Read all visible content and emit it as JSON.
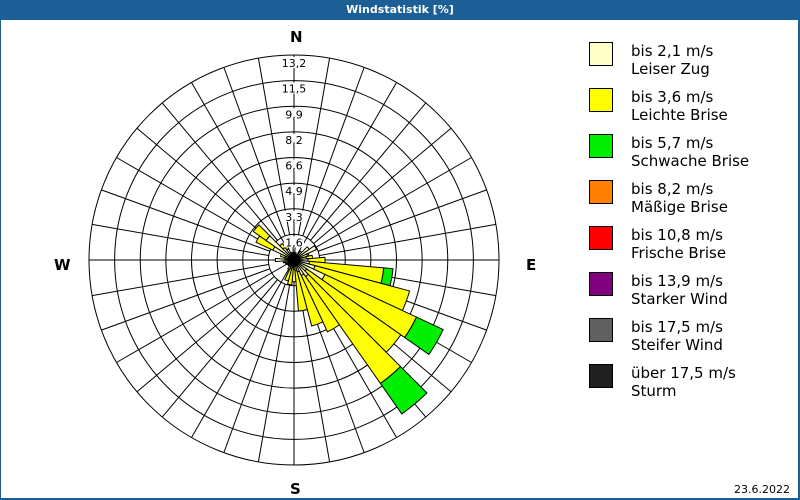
{
  "window": {
    "title": "Windstatistik [%]"
  },
  "footer": {
    "date": "23.6.2022"
  },
  "compass": {
    "n": "N",
    "e": "E",
    "s": "S",
    "w": "W"
  },
  "legend": [
    {
      "range": "bis 2,1 m/s",
      "label": "Leiser Zug",
      "color": "#ffffc8"
    },
    {
      "range": "bis 3,6 m/s",
      "label": "Leichte Brise",
      "color": "#ffff00"
    },
    {
      "range": "bis 5,7 m/s",
      "label": "Schwache Brise",
      "color": "#00ee00"
    },
    {
      "range": "bis 8,2 m/s",
      "label": "Mäßige Brise",
      "color": "#ff8000"
    },
    {
      "range": "bis 10,8 m/s",
      "label": "Frische Brise",
      "color": "#ff0000"
    },
    {
      "range": "bis 13,9 m/s",
      "label": "Starker Wind",
      "color": "#800080"
    },
    {
      "range": "bis 17,5 m/s",
      "label": "Steifer Wind",
      "color": "#606060"
    },
    {
      "range": "über 17,5 m/s",
      "label": "Sturm",
      "color": "#202020"
    }
  ],
  "chart_data": {
    "type": "wind-rose",
    "title": "Windstatistik [%]",
    "unit": "%",
    "ring_labels": [
      "1,6",
      "3,3",
      "4,9",
      "6,6",
      "8,2",
      "9,9",
      "11,5",
      "13,2"
    ],
    "rmax": 13.2,
    "sector_width_deg": 10,
    "directions_deg": [
      0,
      10,
      20,
      30,
      40,
      50,
      60,
      70,
      80,
      90,
      100,
      110,
      120,
      130,
      140,
      150,
      160,
      170,
      180,
      190,
      200,
      210,
      220,
      230,
      240,
      250,
      260,
      270,
      280,
      290,
      300,
      310,
      320,
      330,
      340,
      350
    ],
    "series": [
      {
        "name": "bis 2,1 m/s",
        "values": [
          1.0,
          0.4,
          0.3,
          0.4,
          0.7,
          1.2,
          1.6,
          0.9,
          0.8,
          0.9,
          1.0,
          1.4,
          2.2,
          1.0,
          1.3,
          1.1,
          0.8,
          0.7,
          0.6,
          0.5,
          0.6,
          0.5,
          0.4,
          0.4,
          0.4,
          0.5,
          0.6,
          1.2,
          0.5,
          0.6,
          1.5,
          2.2,
          1.0,
          0.8,
          0.4,
          0.4
        ]
      },
      {
        "name": "bis 3,6 m/s",
        "values": [
          0.1,
          0.1,
          0.0,
          0.0,
          0.0,
          0.0,
          0.0,
          0.1,
          0.4,
          1.1,
          4.8,
          6.3,
          6.5,
          7.4,
          8.4,
          4.0,
          3.6,
          2.6,
          0.8,
          1.1,
          0.8,
          0.2,
          0.1,
          0.1,
          0.1,
          0.1,
          0.1,
          0.0,
          0.1,
          0.3,
          1.2,
          1.0,
          0.3,
          0.2,
          0.1,
          0.1
        ]
      },
      {
        "name": "bis 5,7 m/s",
        "values": [
          0,
          0,
          0,
          0,
          0,
          0,
          0,
          0,
          0,
          0,
          0.6,
          0,
          1.9,
          0,
          2.4,
          0,
          0,
          0,
          0,
          0,
          0,
          0,
          0,
          0,
          0,
          0,
          0,
          0,
          0,
          0,
          0,
          0,
          0,
          0,
          0,
          0
        ]
      }
    ]
  }
}
